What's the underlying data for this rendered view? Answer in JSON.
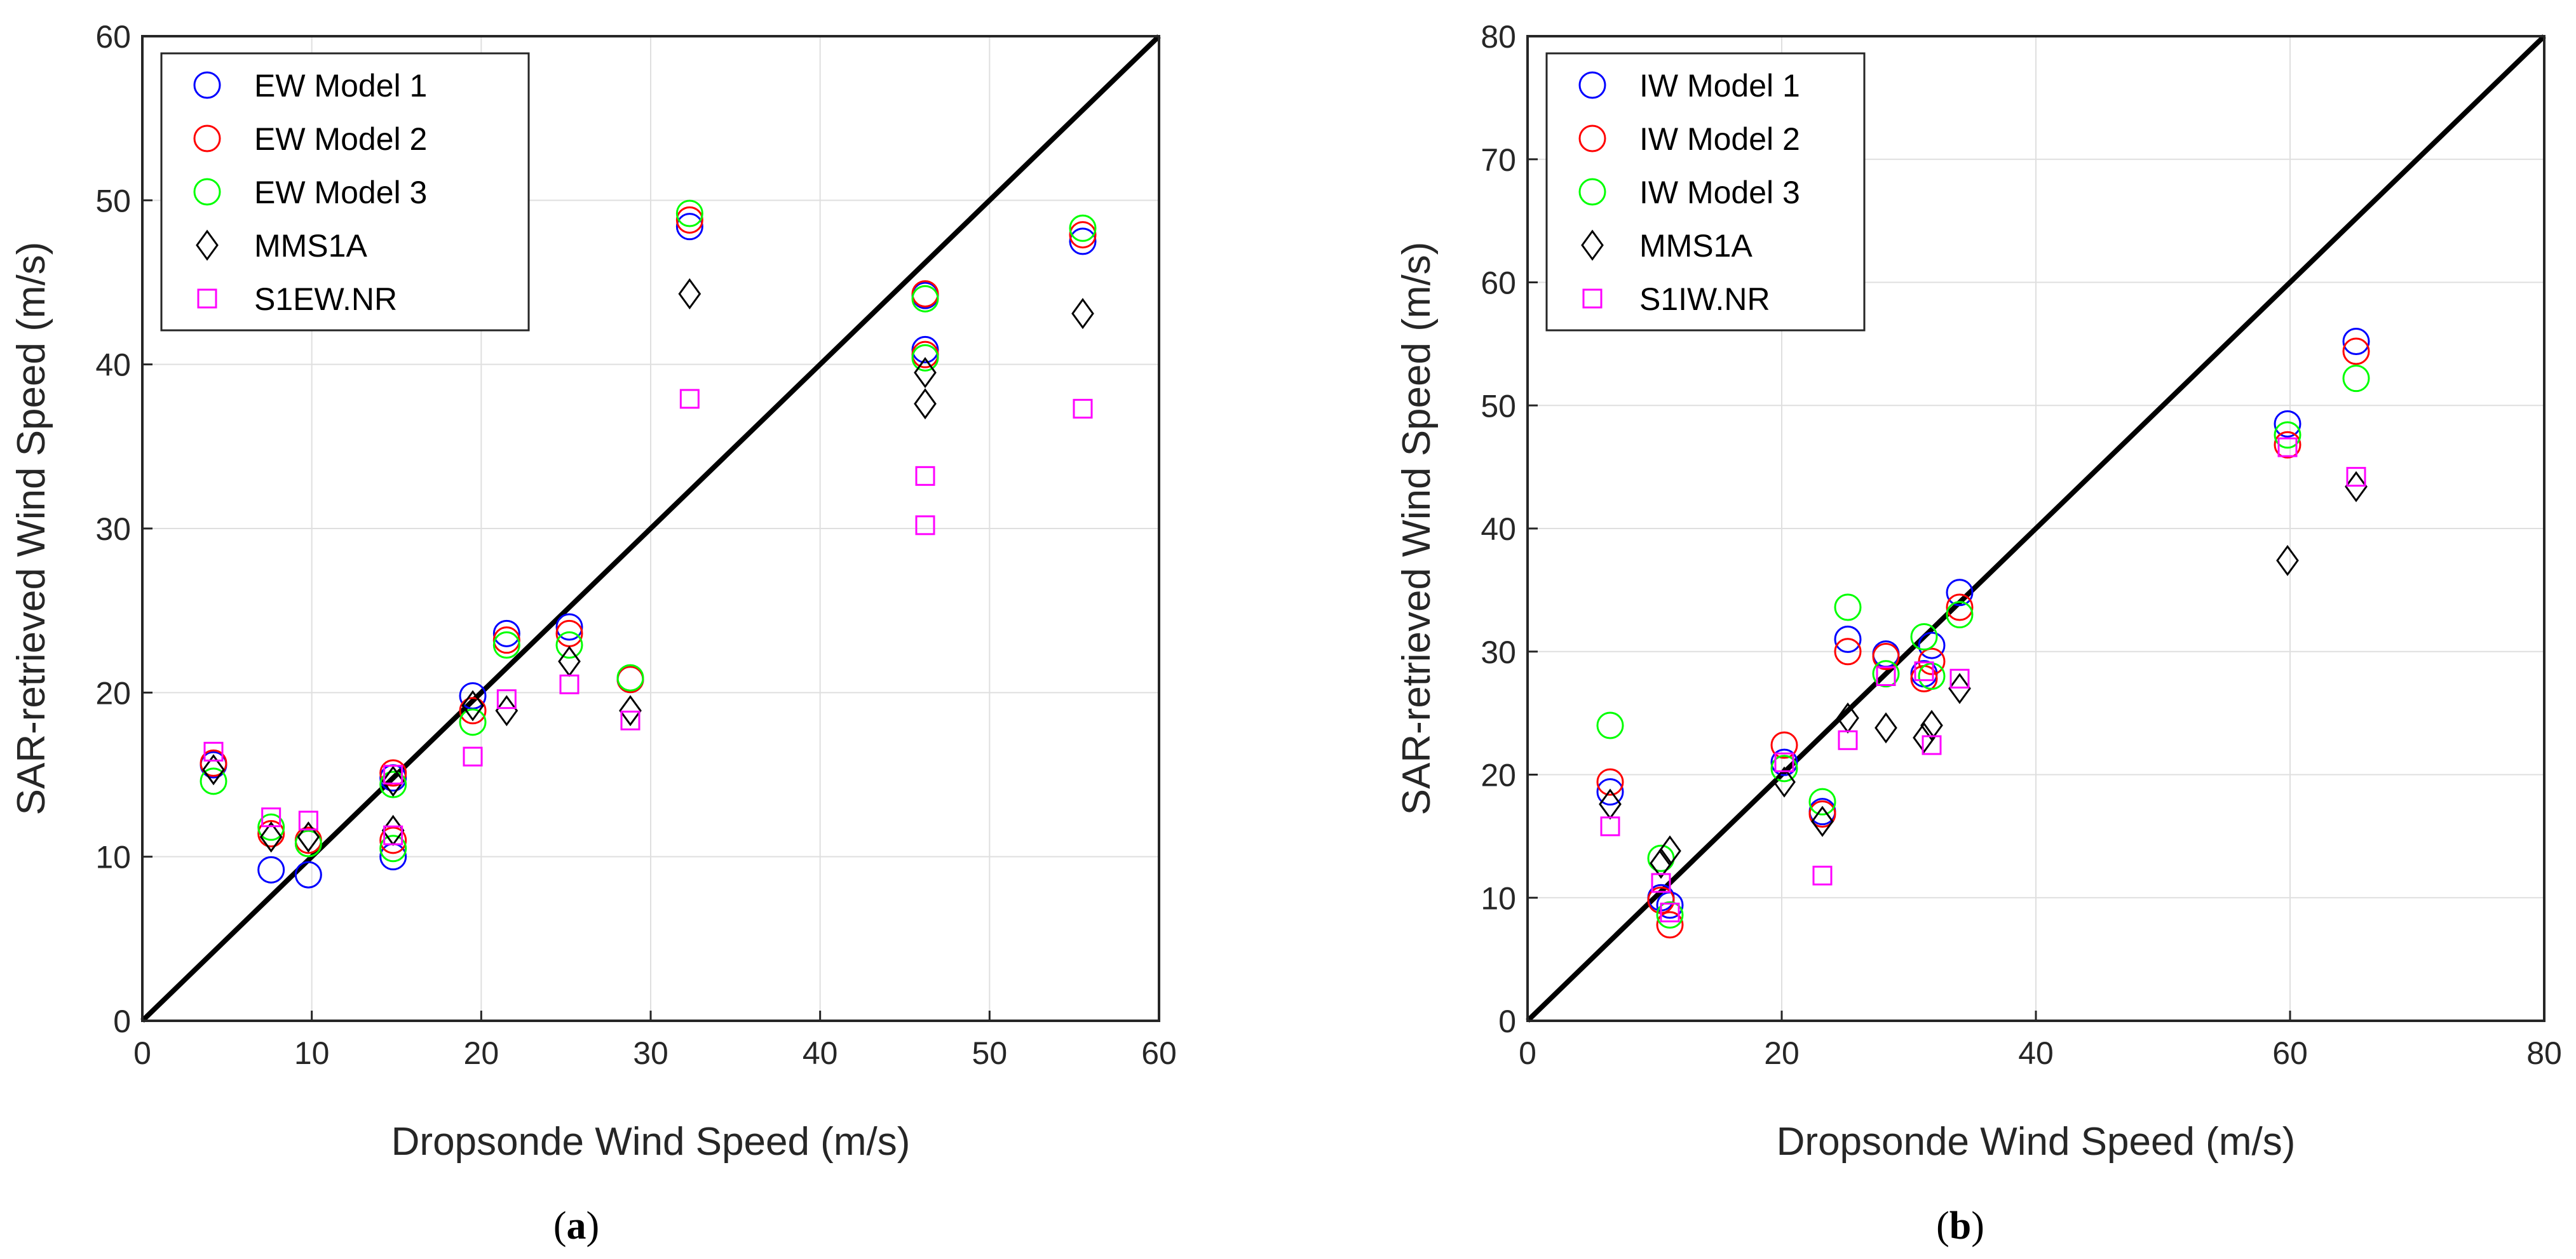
{
  "chart_data": [
    {
      "id": "a",
      "type": "scatter",
      "caption_letter": "a",
      "xlabel": "Dropsonde Wind Speed (m/s)",
      "ylabel": "SAR-retrieved Wind Speed (m/s)",
      "xlim": [
        0,
        60
      ],
      "ylim": [
        0,
        60
      ],
      "xticks": [
        0,
        10,
        20,
        30,
        40,
        50,
        60
      ],
      "yticks": [
        0,
        10,
        20,
        30,
        40,
        50,
        60
      ],
      "grid": true,
      "legend_position": "top-left",
      "reference_line": {
        "from": [
          0,
          0
        ],
        "to": [
          60,
          60
        ],
        "color": "#000000"
      },
      "series": [
        {
          "name": "EW Model 1",
          "marker": "circle",
          "color": "#0000ff",
          "points": [
            [
              4.2,
              15.6
            ],
            [
              7.6,
              9.2
            ],
            [
              9.8,
              8.9
            ],
            [
              14.8,
              10.0
            ],
            [
              14.8,
              14.8
            ],
            [
              19.5,
              19.8
            ],
            [
              21.5,
              23.6
            ],
            [
              25.2,
              24.0
            ],
            [
              28.8,
              20.8
            ],
            [
              32.3,
              48.4
            ],
            [
              46.2,
              40.9
            ],
            [
              46.2,
              44.2
            ],
            [
              55.5,
              47.5
            ]
          ]
        },
        {
          "name": "EW Model 2",
          "marker": "circle",
          "color": "#ff0000",
          "points": [
            [
              4.2,
              15.7
            ],
            [
              7.6,
              11.4
            ],
            [
              9.8,
              11.0
            ],
            [
              14.8,
              11.0
            ],
            [
              14.8,
              15.1
            ],
            [
              19.5,
              18.9
            ],
            [
              21.5,
              23.2
            ],
            [
              25.2,
              23.6
            ],
            [
              28.8,
              20.8
            ],
            [
              32.3,
              48.8
            ],
            [
              46.2,
              40.6
            ],
            [
              46.2,
              44.3
            ],
            [
              55.5,
              47.9
            ]
          ]
        },
        {
          "name": "EW Model 3",
          "marker": "circle",
          "color": "#00ff00",
          "points": [
            [
              4.2,
              14.6
            ],
            [
              7.6,
              11.8
            ],
            [
              9.8,
              10.8
            ],
            [
              14.8,
              10.5
            ],
            [
              14.8,
              14.4
            ],
            [
              19.5,
              18.2
            ],
            [
              21.5,
              22.9
            ],
            [
              25.2,
              22.9
            ],
            [
              28.8,
              20.9
            ],
            [
              32.3,
              49.2
            ],
            [
              46.2,
              40.4
            ],
            [
              46.2,
              44.0
            ],
            [
              55.5,
              48.3
            ]
          ]
        },
        {
          "name": "MMS1A",
          "marker": "diamond",
          "color": "#000000",
          "points": [
            [
              4.2,
              15.3
            ],
            [
              7.6,
              11.2
            ],
            [
              9.8,
              11.2
            ],
            [
              14.8,
              11.6
            ],
            [
              14.8,
              14.6
            ],
            [
              19.5,
              19.2
            ],
            [
              21.5,
              18.9
            ],
            [
              25.2,
              21.9
            ],
            [
              28.8,
              18.9
            ],
            [
              32.3,
              44.3
            ],
            [
              46.2,
              37.6
            ],
            [
              46.2,
              39.5
            ],
            [
              55.5,
              43.1
            ]
          ]
        },
        {
          "name": "S1EW.NR",
          "marker": "square",
          "color": "#ff00ff",
          "points": [
            [
              4.2,
              16.4
            ],
            [
              7.6,
              12.4
            ],
            [
              9.8,
              12.2
            ],
            [
              14.8,
              11.3
            ],
            [
              14.8,
              15.0
            ],
            [
              19.5,
              16.1
            ],
            [
              21.5,
              19.6
            ],
            [
              25.2,
              20.5
            ],
            [
              28.8,
              18.3
            ],
            [
              32.3,
              37.9
            ],
            [
              46.2,
              33.2
            ],
            [
              46.2,
              30.2
            ],
            [
              55.5,
              37.3
            ]
          ]
        }
      ]
    },
    {
      "id": "b",
      "type": "scatter",
      "caption_letter": "b",
      "xlabel": "Dropsonde Wind Speed (m/s)",
      "ylabel": "SAR-retrieved Wind Speed (m/s)",
      "xlim": [
        0,
        80
      ],
      "ylim": [
        0,
        80
      ],
      "xticks": [
        0,
        20,
        40,
        60,
        80
      ],
      "yticks": [
        0,
        10,
        20,
        30,
        40,
        50,
        60,
        70,
        80
      ],
      "grid": true,
      "legend_position": "top-left",
      "reference_line": {
        "from": [
          0,
          0
        ],
        "to": [
          80,
          80
        ],
        "color": "#000000"
      },
      "series": [
        {
          "name": "IW Model 1",
          "marker": "circle",
          "color": "#0000ff",
          "points": [
            [
              6.5,
              18.6
            ],
            [
              10.5,
              10.0
            ],
            [
              11.2,
              9.4
            ],
            [
              20.2,
              21.0
            ],
            [
              23.2,
              17.0
            ],
            [
              25.2,
              31.0
            ],
            [
              28.2,
              29.8
            ],
            [
              31.2,
              28.2
            ],
            [
              31.8,
              30.5
            ],
            [
              34.0,
              34.8
            ],
            [
              59.8,
              48.5
            ],
            [
              65.2,
              55.2
            ]
          ]
        },
        {
          "name": "IW Model 2",
          "marker": "circle",
          "color": "#ff0000",
          "points": [
            [
              6.5,
              19.4
            ],
            [
              10.5,
              9.8
            ],
            [
              11.2,
              7.8
            ],
            [
              20.2,
              22.4
            ],
            [
              23.2,
              16.8
            ],
            [
              25.2,
              30.0
            ],
            [
              28.2,
              29.6
            ],
            [
              31.2,
              27.8
            ],
            [
              31.8,
              29.2
            ],
            [
              34.0,
              33.6
            ],
            [
              59.8,
              46.8
            ],
            [
              65.2,
              54.4
            ]
          ]
        },
        {
          "name": "IW Model 3",
          "marker": "circle",
          "color": "#00ff00",
          "points": [
            [
              6.5,
              24.0
            ],
            [
              10.5,
              13.2
            ],
            [
              11.2,
              8.6
            ],
            [
              20.2,
              20.5
            ],
            [
              23.2,
              17.8
            ],
            [
              25.2,
              33.6
            ],
            [
              28.2,
              28.2
            ],
            [
              31.2,
              31.2
            ],
            [
              31.8,
              28.0
            ],
            [
              34.0,
              33.0
            ],
            [
              59.8,
              47.6
            ],
            [
              65.2,
              52.2
            ]
          ]
        },
        {
          "name": "MMS1A",
          "marker": "diamond",
          "color": "#000000",
          "points": [
            [
              6.5,
              17.6
            ],
            [
              10.5,
              12.8
            ],
            [
              11.2,
              13.8
            ],
            [
              20.2,
              19.4
            ],
            [
              23.2,
              16.2
            ],
            [
              25.2,
              24.6
            ],
            [
              28.2,
              23.8
            ],
            [
              31.2,
              23.0
            ],
            [
              31.8,
              24.0
            ],
            [
              34.0,
              27.0
            ],
            [
              59.8,
              37.4
            ],
            [
              65.2,
              43.4
            ]
          ]
        },
        {
          "name": "S1IW.NR",
          "marker": "square",
          "color": "#ff00ff",
          "points": [
            [
              6.5,
              15.8
            ],
            [
              10.5,
              11.2
            ],
            [
              11.2,
              8.8
            ],
            [
              20.2,
              21.0
            ],
            [
              23.2,
              11.8
            ],
            [
              25.2,
              22.8
            ],
            [
              28.2,
              28.0
            ],
            [
              31.2,
              28.4
            ],
            [
              31.8,
              22.4
            ],
            [
              34.0,
              27.8
            ],
            [
              59.8,
              46.6
            ],
            [
              65.2,
              44.2
            ]
          ]
        }
      ]
    }
  ]
}
